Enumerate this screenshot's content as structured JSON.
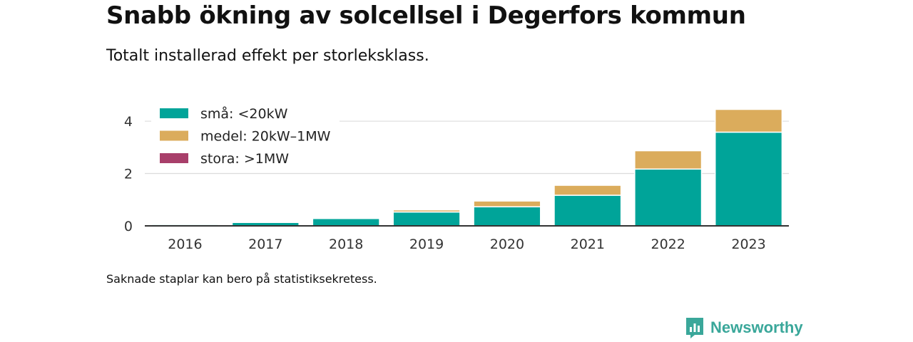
{
  "title": "Snabb ökning av solcellsel i Degerfors kommun",
  "subtitle": "Totalt installerad effekt per storleksklass.",
  "caption": "Saknade staplar kan bero på statistiksekretess.",
  "brand": {
    "name": "Newsworthy",
    "icon": "newsworthy-logo-icon",
    "color": "#3aa79a"
  },
  "chart_data": {
    "type": "bar",
    "stacked": true,
    "categories": [
      "2016",
      "2017",
      "2018",
      "2019",
      "2020",
      "2021",
      "2022",
      "2023"
    ],
    "series": [
      {
        "name": "små: <20kW",
        "color": "#00a499",
        "values": [
          0.05,
          0.13,
          0.28,
          0.53,
          0.73,
          1.17,
          2.17,
          3.58
        ]
      },
      {
        "name": "medel: 20kW–1MW",
        "color": "#dbac5c",
        "values": [
          0.0,
          0.0,
          0.0,
          0.08,
          0.22,
          0.38,
          0.7,
          0.87
        ]
      },
      {
        "name": "stora: >1MW",
        "color": "#a83f6a",
        "values": [
          0,
          0,
          0,
          0,
          0,
          0,
          0,
          0
        ]
      }
    ],
    "ylim": [
      0,
      4.6
    ],
    "yticks": [
      0,
      2,
      4
    ],
    "grid": true,
    "legend_position": "top-left"
  }
}
